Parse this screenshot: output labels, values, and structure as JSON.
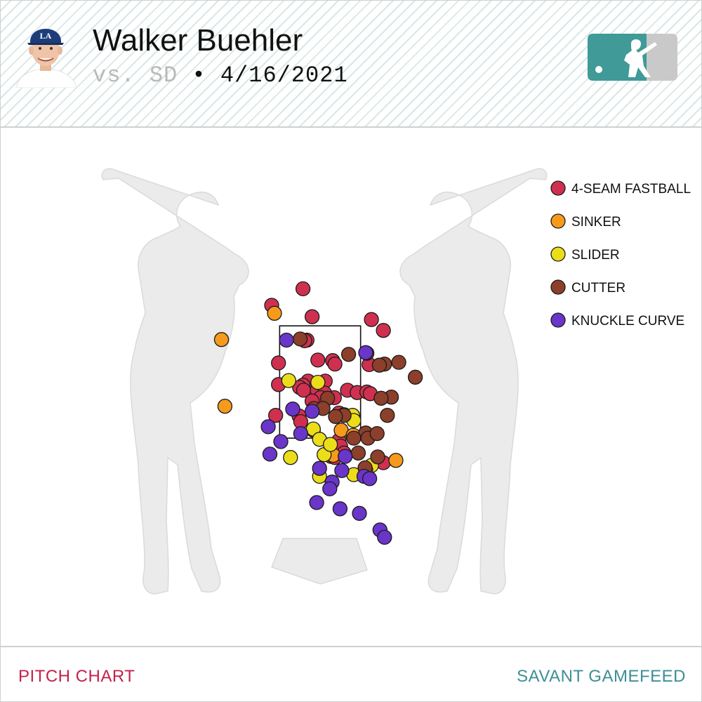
{
  "header": {
    "player_name": "Walker Buehler",
    "opponent": "vs. SD",
    "separator": " • ",
    "date": "4/16/2021"
  },
  "logo": {
    "name": "mlb-logo",
    "colors": {
      "left": "#3f9a98",
      "right": "#c9c9c9"
    }
  },
  "headshot": {
    "name": "player-headshot",
    "cap_color": "#1c3d7a",
    "cap_logo": "LA"
  },
  "footer": {
    "left_label": "PITCH CHART",
    "right_label": "SAVANT GAMEFEED"
  },
  "chart_data": {
    "type": "scatter",
    "title": "",
    "xlabel": "",
    "ylabel": "",
    "x_units": "ft (horizontal plate location, catcher view)",
    "y_units": "ft (height above ground)",
    "xlim": [
      -3.0,
      3.0
    ],
    "ylim": [
      0.0,
      4.4
    ],
    "grid": false,
    "legend_position": "top-right",
    "strike_zone": {
      "x": [
        -0.71,
        0.71
      ],
      "y": [
        1.55,
        3.52
      ]
    },
    "series": [
      {
        "name": "4-SEAM FASTBALL",
        "color": "#d0304f",
        "points": [
          [
            -0.3,
            4.17
          ],
          [
            -0.85,
            3.88
          ],
          [
            -0.14,
            3.68
          ],
          [
            0.9,
            3.63
          ],
          [
            1.11,
            3.44
          ],
          [
            -0.23,
            3.27
          ],
          [
            -0.27,
            3.26
          ],
          [
            -0.04,
            2.92
          ],
          [
            0.22,
            2.91
          ],
          [
            0.26,
            2.85
          ],
          [
            0.86,
            2.84
          ],
          [
            -0.73,
            2.87
          ],
          [
            -0.21,
            2.55
          ],
          [
            0.09,
            2.55
          ],
          [
            -0.3,
            2.48
          ],
          [
            -0.36,
            2.44
          ],
          [
            -0.73,
            2.49
          ],
          [
            -0.29,
            2.39
          ],
          [
            -0.05,
            2.39
          ],
          [
            0.48,
            2.39
          ],
          [
            0.08,
            2.34
          ],
          [
            0.65,
            2.35
          ],
          [
            0.82,
            2.36
          ],
          [
            0.88,
            2.33
          ],
          [
            0.01,
            2.26
          ],
          [
            0.25,
            2.26
          ],
          [
            -0.14,
            2.2
          ],
          [
            0.33,
            1.99
          ],
          [
            0.42,
            1.96
          ],
          [
            -0.78,
            1.95
          ],
          [
            -0.37,
            1.94
          ],
          [
            -0.34,
            1.84
          ],
          [
            -0.12,
            1.69
          ],
          [
            0.33,
            1.51
          ],
          [
            0.36,
            1.41
          ],
          [
            0.42,
            1.29
          ],
          [
            0.19,
            1.23
          ],
          [
            0.26,
            1.21
          ],
          [
            1.11,
            1.12
          ]
        ]
      },
      {
        "name": "SINKER",
        "color": "#f59a1b",
        "points": [
          [
            -0.8,
            3.74
          ],
          [
            -1.73,
            3.28
          ],
          [
            -1.67,
            2.11
          ],
          [
            0.37,
            1.69
          ],
          [
            0.58,
            1.6
          ],
          [
            0.23,
            1.25
          ],
          [
            1.33,
            1.16
          ]
        ]
      },
      {
        "name": "SLIDER",
        "color": "#ecdd1a",
        "points": [
          [
            -0.55,
            2.56
          ],
          [
            -0.04,
            2.53
          ],
          [
            -0.12,
            1.71
          ],
          [
            0.57,
            1.95
          ],
          [
            0.59,
            1.86
          ],
          [
            0.07,
            1.26
          ],
          [
            0.59,
            0.91
          ],
          [
            0.9,
            1.07
          ],
          [
            0.8,
            0.99
          ],
          [
            -0.01,
            1.53
          ],
          [
            -0.52,
            1.21
          ],
          [
            0.18,
            1.44
          ],
          [
            -0.01,
            0.88
          ]
        ]
      },
      {
        "name": "CUTTER",
        "color": "#8c3f2a",
        "points": [
          [
            -0.35,
            3.29
          ],
          [
            0.5,
            3.02
          ],
          [
            0.82,
            3.04
          ],
          [
            1.38,
            2.88
          ],
          [
            1.13,
            2.85
          ],
          [
            1.04,
            2.83
          ],
          [
            1.67,
            2.62
          ],
          [
            1.25,
            2.27
          ],
          [
            1.07,
            2.25
          ],
          [
            0.13,
            2.25
          ],
          [
            -0.11,
            2.07
          ],
          [
            0.05,
            2.07
          ],
          [
            1.18,
            1.95
          ],
          [
            0.42,
            1.95
          ],
          [
            0.27,
            1.93
          ],
          [
            0.8,
            1.64
          ],
          [
            0.84,
            1.55
          ],
          [
            1.0,
            1.63
          ],
          [
            0.59,
            1.55
          ],
          [
            0.67,
            1.29
          ],
          [
            1.01,
            1.22
          ],
          [
            0.79,
            1.03
          ]
        ]
      },
      {
        "name": "KNUCKLE CURVE",
        "color": "#6a35c9",
        "points": [
          [
            -0.59,
            3.27
          ],
          [
            0.8,
            3.05
          ],
          [
            -0.48,
            2.06
          ],
          [
            -0.14,
            2.02
          ],
          [
            -0.91,
            1.75
          ],
          [
            -0.34,
            1.63
          ],
          [
            -0.69,
            1.49
          ],
          [
            -0.88,
            1.27
          ],
          [
            0.44,
            1.23
          ],
          [
            -0.01,
            1.02
          ],
          [
            0.38,
            0.98
          ],
          [
            0.77,
            0.88
          ],
          [
            0.87,
            0.84
          ],
          [
            0.21,
            0.78
          ],
          [
            0.17,
            0.66
          ],
          [
            -0.06,
            0.42
          ],
          [
            0.35,
            0.31
          ],
          [
            0.69,
            0.23
          ],
          [
            1.05,
            -0.06
          ],
          [
            1.13,
            -0.19
          ]
        ]
      }
    ]
  }
}
